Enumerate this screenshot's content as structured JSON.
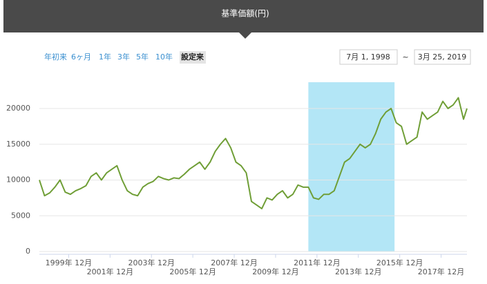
{
  "chart_data": {
    "type": "line",
    "title": "基準価額(円)",
    "range_buttons": [
      "年初来",
      "6ヶ月",
      "1年",
      "3年",
      "5年",
      "10年",
      "設定来"
    ],
    "selected_button": 6,
    "date_from": "7月 1, 1998",
    "date_separator": "~",
    "date_to": "3月 25, 2019",
    "x": [
      "1998-07",
      "1998-10",
      "1999-01",
      "1999-04",
      "1999-07",
      "1999-10",
      "2000-01",
      "2000-04",
      "2000-07",
      "2000-10",
      "2001-01",
      "2001-04",
      "2001-07",
      "2001-10",
      "2002-01",
      "2002-04",
      "2002-07",
      "2002-10",
      "2003-01",
      "2003-04",
      "2003-07",
      "2003-10",
      "2004-01",
      "2004-04",
      "2004-07",
      "2004-10",
      "2005-01",
      "2005-04",
      "2005-07",
      "2005-10",
      "2006-01",
      "2006-04",
      "2006-07",
      "2006-10",
      "2007-01",
      "2007-04",
      "2007-07",
      "2007-10",
      "2008-01",
      "2008-04",
      "2008-07",
      "2008-10",
      "2009-01",
      "2009-04",
      "2009-07",
      "2009-10",
      "2010-01",
      "2010-04",
      "2010-07",
      "2010-10",
      "2011-01",
      "2011-04",
      "2011-07",
      "2011-10",
      "2012-01",
      "2012-04",
      "2012-07",
      "2012-10",
      "2013-01",
      "2013-04",
      "2013-07",
      "2013-10",
      "2014-01",
      "2014-04",
      "2014-07",
      "2014-10",
      "2015-01",
      "2015-04",
      "2015-07",
      "2015-10",
      "2016-01",
      "2016-04",
      "2016-07",
      "2016-10",
      "2017-01",
      "2017-04",
      "2017-07",
      "2017-10",
      "2018-01",
      "2018-04",
      "2018-07",
      "2018-10",
      "2019-01",
      "2019-03"
    ],
    "values": [
      10000,
      7800,
      8200,
      9000,
      10000,
      8300,
      8000,
      8500,
      8800,
      9200,
      10500,
      11000,
      10000,
      11000,
      11500,
      12000,
      10000,
      8500,
      8000,
      7800,
      9000,
      9500,
      9800,
      10500,
      10200,
      10000,
      10300,
      10200,
      10800,
      11500,
      12000,
      12500,
      11500,
      12500,
      14000,
      15000,
      15800,
      14500,
      12500,
      12000,
      11000,
      7000,
      6500,
      6000,
      7500,
      7200,
      8000,
      8500,
      7500,
      8000,
      9300,
      9000,
      9000,
      7500,
      7300,
      8000,
      8000,
      8500,
      10500,
      12500,
      13000,
      14000,
      15000,
      14500,
      15000,
      16500,
      18500,
      19500,
      20000,
      18000,
      17500,
      15000,
      15500,
      16000,
      19500,
      18500,
      19000,
      19500,
      21000,
      20000,
      20500,
      21500,
      18500,
      20000
    ],
    "color": "#6f9e36",
    "plot_band": {
      "from": "2011-07",
      "to": "2015-09",
      "color": "#b3e6f6"
    },
    "xlim": [
      "1998-07",
      "2019-03"
    ],
    "xticks": [
      {
        "value": "1999-12",
        "label": "1999年 12月"
      },
      {
        "value": "2001-12",
        "label": "2001年 12月"
      },
      {
        "value": "2003-12",
        "label": "2003年 12月"
      },
      {
        "value": "2005-12",
        "label": "2005年 12月"
      },
      {
        "value": "2007-12",
        "label": "2007年 12月"
      },
      {
        "value": "2009-12",
        "label": "2009年 12月"
      },
      {
        "value": "2011-12",
        "label": "2011年 12月"
      },
      {
        "value": "2013-12",
        "label": "2013年 12月"
      },
      {
        "value": "2015-12",
        "label": "2015年 12月"
      },
      {
        "value": "2017-12",
        "label": "2017年 12月"
      }
    ],
    "ylim": [
      0,
      24000
    ],
    "yticks": [
      0,
      5000,
      10000,
      15000,
      20000
    ],
    "grid": true
  }
}
